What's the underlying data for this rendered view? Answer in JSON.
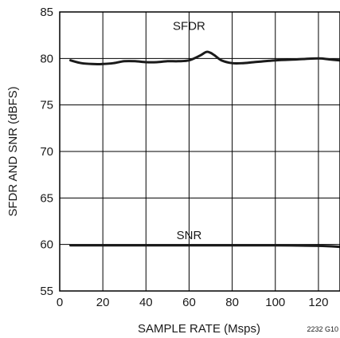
{
  "chart_data": {
    "type": "line",
    "xlabel": "SAMPLE RATE (Msps)",
    "ylabel": "SFDR AND SNR (dBFS)",
    "xlim": [
      0,
      130
    ],
    "ylim": [
      55,
      85
    ],
    "x_ticks": [
      0,
      20,
      40,
      60,
      80,
      100,
      120
    ],
    "y_ticks": [
      55,
      60,
      65,
      70,
      75,
      80,
      85
    ],
    "grid": true,
    "figure_code": "2232 G10",
    "series": [
      {
        "name": "SFDR",
        "x": [
          5,
          10,
          15,
          20,
          25,
          30,
          35,
          40,
          45,
          50,
          55,
          60,
          65,
          68,
          70,
          72,
          75,
          80,
          85,
          90,
          100,
          110,
          120,
          125,
          130
        ],
        "y": [
          79.8,
          79.5,
          79.4,
          79.4,
          79.5,
          79.7,
          79.7,
          79.6,
          79.6,
          79.7,
          79.7,
          79.8,
          80.3,
          80.7,
          80.6,
          80.3,
          79.8,
          79.5,
          79.5,
          79.6,
          79.8,
          79.9,
          80.0,
          79.9,
          79.8
        ]
      },
      {
        "name": "SNR",
        "x": [
          5,
          20,
          40,
          60,
          80,
          100,
          120,
          130
        ],
        "y": [
          59.9,
          59.9,
          59.9,
          59.9,
          59.9,
          59.9,
          59.85,
          59.75
        ]
      }
    ]
  }
}
